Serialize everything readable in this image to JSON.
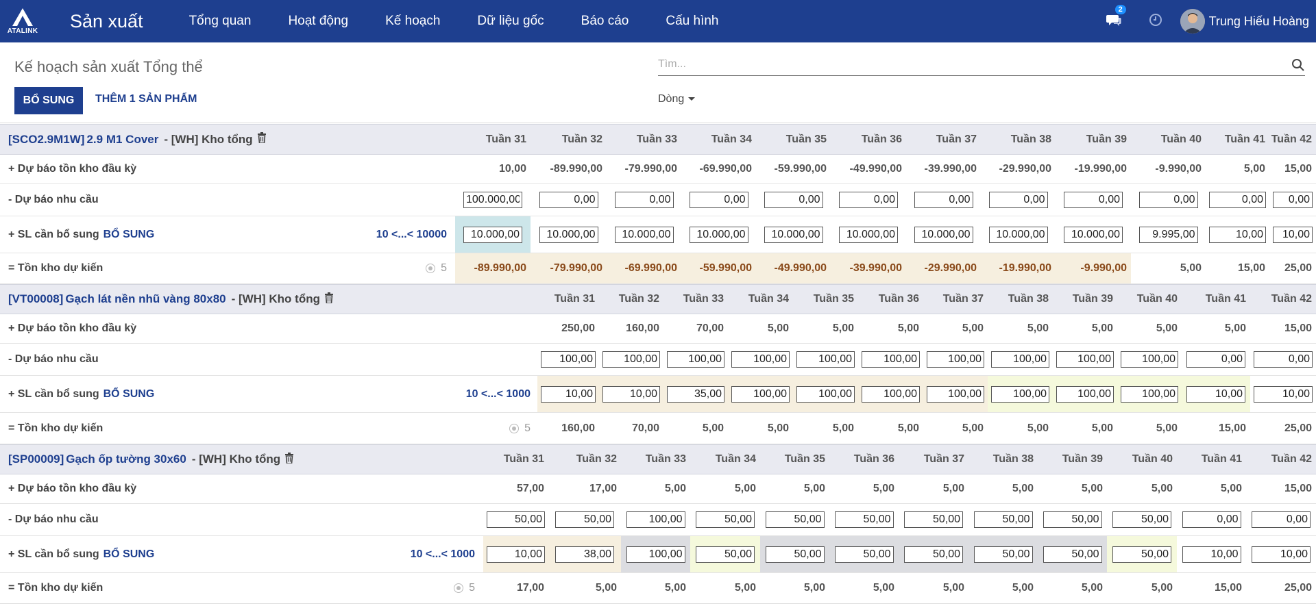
{
  "navbar": {
    "logo_text": "ATALINK",
    "app_name": "Sản xuất",
    "menu": [
      "Tổng quan",
      "Hoạt động",
      "Kế hoạch",
      "Dữ liệu gốc",
      "Báo cáo",
      "Cấu hình"
    ],
    "notification_count": "2",
    "user_name": "Trung Hiếu Hoàng"
  },
  "control_panel": {
    "title": "Kế hoạch sản xuất Tổng thể",
    "search_placeholder": "Tìm...",
    "btn_replenish": "BỔ SUNG",
    "btn_add_product": "THÊM 1 SẢN PHẨM",
    "group_by": "Dòng"
  },
  "colors": {
    "brand": "#1e3f8f",
    "teal": "#cde6ea",
    "beige": "#f6efdf",
    "green": "#f5f9dc",
    "gray": "#dcdde1"
  },
  "labels": {
    "starting": "+ Dự báo tồn kho đầu kỳ",
    "demand": "- Dự báo nhu cầu",
    "replenish": "+ SL cần bổ sung",
    "replenish_link": "BỔ SUNG",
    "ending": "= Tồn kho dự kiến"
  },
  "products": [
    {
      "code": "[SCO2.9M1W]",
      "name": "2.9 M1 Cover",
      "warehouse": "- [WH] Kho tổng",
      "range": "10 <...< 10000",
      "lead_time": "5",
      "weeks": [
        "Tuần 31",
        "Tuần 32",
        "Tuần 33",
        "Tuần 34",
        "Tuần 35",
        "Tuần 36",
        "Tuần 37",
        "Tuần 38",
        "Tuần 39",
        "Tuần 40",
        "Tuần 41",
        "Tuần 42"
      ],
      "starting": [
        "10,00",
        "-89.990,00",
        "-79.990,00",
        "-69.990,00",
        "-59.990,00",
        "-49.990,00",
        "-39.990,00",
        "-29.990,00",
        "-19.990,00",
        "-9.990,00",
        "5,00",
        "15,00"
      ],
      "demand": [
        "100.000,00",
        "0,00",
        "0,00",
        "0,00",
        "0,00",
        "0,00",
        "0,00",
        "0,00",
        "0,00",
        "0,00",
        "0,00",
        "0,00"
      ],
      "replenish": [
        "10.000,00",
        "10.000,00",
        "10.000,00",
        "10.000,00",
        "10.000,00",
        "10.000,00",
        "10.000,00",
        "10.000,00",
        "10.000,00",
        "9.995,00",
        "10,00",
        "10,00"
      ],
      "replenish_bg": [
        "teal",
        "",
        "",
        "",
        "",
        "",
        "",
        "",
        "",
        "",
        "",
        ""
      ],
      "ending": [
        "-89.990,00",
        "-79.990,00",
        "-69.990,00",
        "-59.990,00",
        "-49.990,00",
        "-39.990,00",
        "-29.990,00",
        "-19.990,00",
        "-9.990,00",
        "5,00",
        "15,00",
        "25,00"
      ],
      "ending_bg": [
        "beige",
        "beige",
        "beige",
        "beige",
        "beige",
        "beige",
        "beige",
        "beige",
        "beige",
        "",
        "",
        ""
      ],
      "ending_color": [
        "#8a4a1a",
        "#8a4a1a",
        "#8a4a1a",
        "#8a4a1a",
        "#8a4a1a",
        "#8a4a1a",
        "#8a4a1a",
        "#8a4a1a",
        "#8a4a1a",
        "#555",
        "#555",
        "#555"
      ]
    },
    {
      "code": "[VT00008]",
      "name": "Gạch lát nền nhũ vàng 80x80",
      "warehouse": "- [WH] Kho tổng",
      "range": "10 <...< 1000",
      "lead_time": "5",
      "weeks": [
        "Tuần 31",
        "Tuần 32",
        "Tuần 33",
        "Tuần 34",
        "Tuần 35",
        "Tuần 36",
        "Tuần 37",
        "Tuần 38",
        "Tuần 39",
        "Tuần 40",
        "Tuần 41",
        "Tuần 42"
      ],
      "starting": [
        "250,00",
        "160,00",
        "70,00",
        "5,00",
        "5,00",
        "5,00",
        "5,00",
        "5,00",
        "5,00",
        "5,00",
        "5,00",
        "15,00"
      ],
      "demand": [
        "100,00",
        "100,00",
        "100,00",
        "100,00",
        "100,00",
        "100,00",
        "100,00",
        "100,00",
        "100,00",
        "100,00",
        "0,00",
        "0,00"
      ],
      "replenish": [
        "10,00",
        "10,00",
        "35,00",
        "100,00",
        "100,00",
        "100,00",
        "100,00",
        "100,00",
        "100,00",
        "100,00",
        "10,00",
        "10,00"
      ],
      "replenish_bg": [
        "beige",
        "beige",
        "beige",
        "beige",
        "beige",
        "beige",
        "beige",
        "green",
        "green",
        "green",
        "green",
        ""
      ],
      "ending": [
        "160,00",
        "70,00",
        "5,00",
        "5,00",
        "5,00",
        "5,00",
        "5,00",
        "5,00",
        "5,00",
        "5,00",
        "15,00",
        "25,00"
      ],
      "ending_bg": [
        "",
        "",
        "",
        "",
        "",
        "",
        "",
        "",
        "",
        "",
        "",
        ""
      ],
      "ending_color": [
        "#555",
        "#555",
        "#555",
        "#555",
        "#555",
        "#555",
        "#555",
        "#555",
        "#555",
        "#555",
        "#555",
        "#555"
      ]
    },
    {
      "code": "[SP00009]",
      "name": "Gạch ốp tường 30x60",
      "warehouse": "- [WH] Kho tổng",
      "range": "10 <...< 1000",
      "lead_time": "5",
      "weeks": [
        "Tuần 31",
        "Tuần 32",
        "Tuần 33",
        "Tuần 34",
        "Tuần 35",
        "Tuần 36",
        "Tuần 37",
        "Tuần 38",
        "Tuần 39",
        "Tuần 40",
        "Tuần 41",
        "Tuần 42"
      ],
      "starting": [
        "57,00",
        "17,00",
        "5,00",
        "5,00",
        "5,00",
        "5,00",
        "5,00",
        "5,00",
        "5,00",
        "5,00",
        "5,00",
        "15,00"
      ],
      "demand": [
        "50,00",
        "50,00",
        "100,00",
        "50,00",
        "50,00",
        "50,00",
        "50,00",
        "50,00",
        "50,00",
        "50,00",
        "0,00",
        "0,00"
      ],
      "replenish": [
        "10,00",
        "38,00",
        "100,00",
        "50,00",
        "50,00",
        "50,00",
        "50,00",
        "50,00",
        "50,00",
        "50,00",
        "10,00",
        "10,00"
      ],
      "replenish_bg": [
        "beige",
        "beige",
        "gray",
        "green",
        "gray",
        "gray",
        "gray",
        "gray",
        "gray",
        "green",
        "",
        ""
      ],
      "ending": [
        "17,00",
        "5,00",
        "5,00",
        "5,00",
        "5,00",
        "5,00",
        "5,00",
        "5,00",
        "5,00",
        "5,00",
        "15,00",
        "25,00"
      ],
      "ending_bg": [
        "",
        "",
        "",
        "",
        "",
        "",
        "",
        "",
        "",
        "",
        "",
        ""
      ],
      "ending_color": [
        "#555",
        "#555",
        "#555",
        "#555",
        "#555",
        "#555",
        "#555",
        "#555",
        "#555",
        "#555",
        "#555",
        "#555"
      ]
    }
  ]
}
